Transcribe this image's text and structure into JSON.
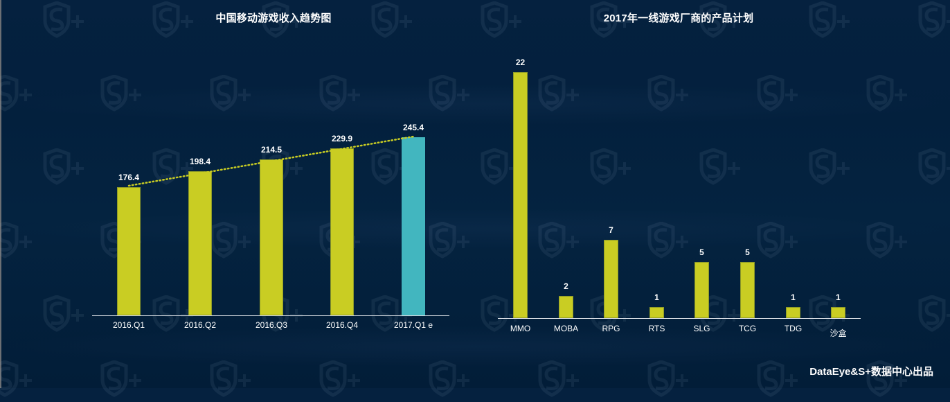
{
  "footer": "DataEye&S+数据中心出品",
  "colors": {
    "background": "#03203d",
    "bar_primary": "#c9cd23",
    "bar_estimate": "#42b6bf",
    "trend_line": "#c9cd23",
    "text": "#ffffff"
  },
  "watermark_icon": "s-plus-shield-logo",
  "chart_data": [
    {
      "type": "bar",
      "title": "中国移动游戏收入趋势图",
      "categories": [
        "2016.Q1",
        "2016.Q2",
        "2016.Q3",
        "2016.Q4",
        "2017.Q1 e"
      ],
      "values": [
        176.4,
        198.4,
        214.5,
        229.9,
        245.4
      ],
      "value_labels": [
        "176.4",
        "198.4",
        "214.5",
        "229.9",
        "245.4"
      ],
      "bar_colors": [
        "#c9cd23",
        "#c9cd23",
        "#c9cd23",
        "#c9cd23",
        "#42b6bf"
      ],
      "trendline": {
        "style": "dotted",
        "color": "#c9cd23",
        "type": "linear"
      },
      "xlabel": "",
      "ylabel": "",
      "grid": false,
      "legend": "none"
    },
    {
      "type": "bar",
      "title": "2017年一线游戏厂商的产品计划",
      "categories": [
        "MMO",
        "MOBA",
        "RPG",
        "RTS",
        "SLG",
        "TCG",
        "TDG",
        "沙盒"
      ],
      "values": [
        22,
        2,
        7,
        1,
        5,
        5,
        1,
        1
      ],
      "value_labels": [
        "22",
        "2",
        "7",
        "1",
        "5",
        "5",
        "1",
        "1"
      ],
      "bar_colors": [
        "#c9cd23",
        "#c9cd23",
        "#c9cd23",
        "#c9cd23",
        "#c9cd23",
        "#c9cd23",
        "#c9cd23",
        "#c9cd23"
      ],
      "xlabel": "",
      "ylabel": "",
      "grid": false,
      "legend": "none"
    }
  ]
}
